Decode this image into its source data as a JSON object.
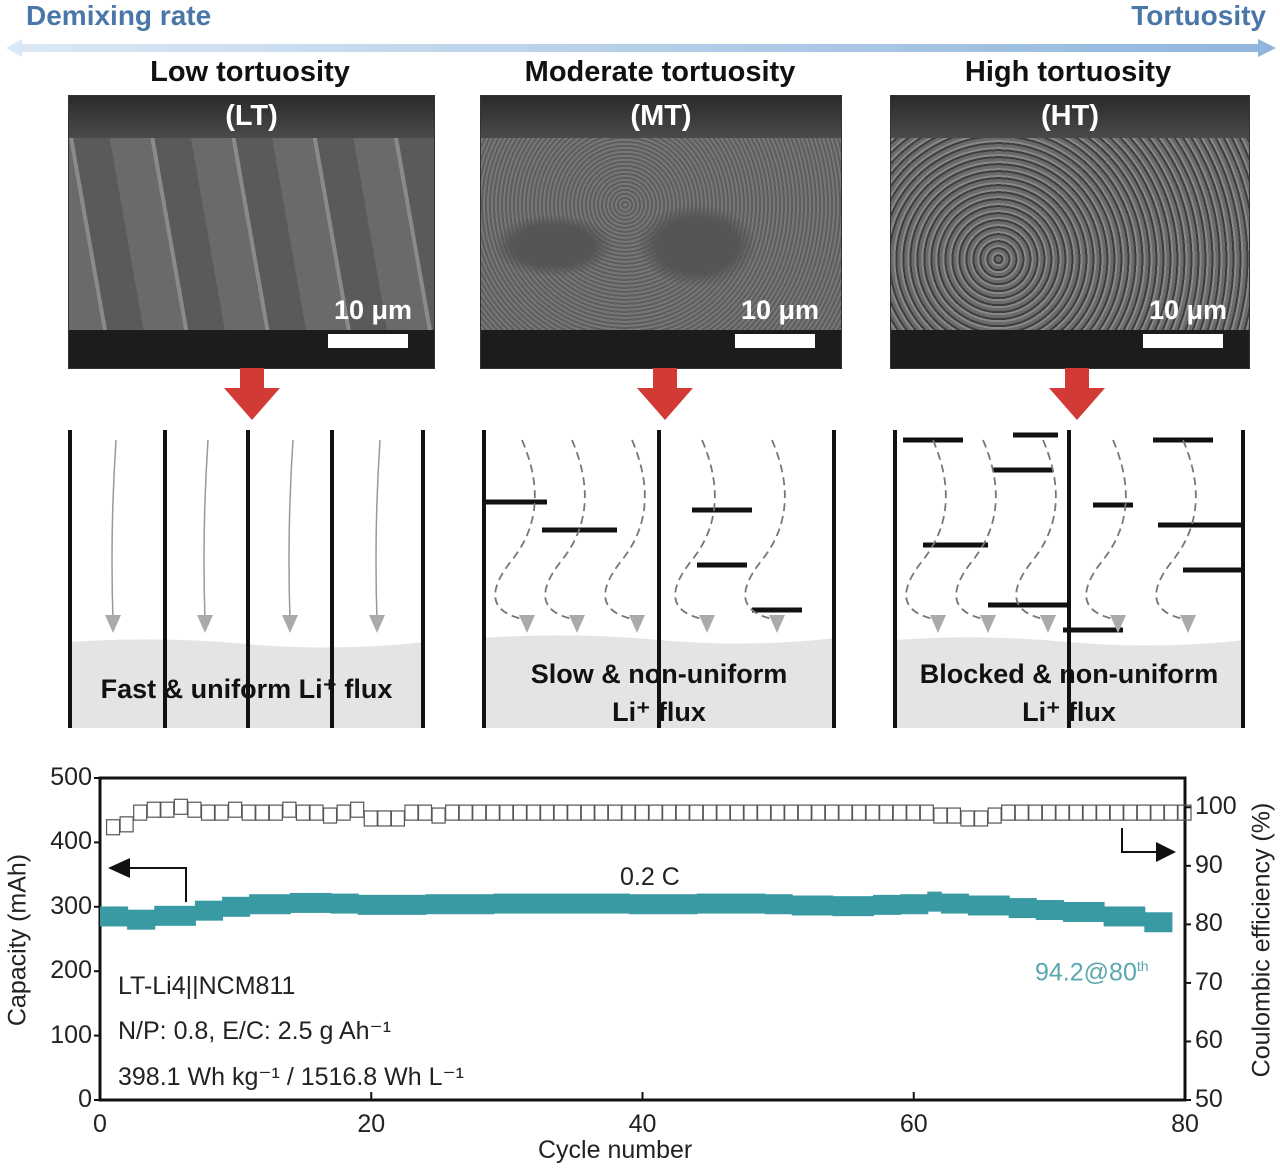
{
  "header": {
    "left_label": "Demixing rate",
    "right_label": "Tortuosity",
    "arrow_color": "#a9c8e8"
  },
  "panels": [
    {
      "title": "Low tortuosity",
      "abbr": "(LT)",
      "scale_bar": "10 μm",
      "flux_text_1": "Fast & uniform Li⁺ flux",
      "flux_text_2": ""
    },
    {
      "title": "Moderate tortuosity",
      "abbr": "(MT)",
      "scale_bar": "10 μm",
      "flux_text_1": "Slow & non-uniform",
      "flux_text_2": "Li⁺ flux"
    },
    {
      "title": "High tortuosity",
      "abbr": "(HT)",
      "scale_bar": "10 μm",
      "flux_text_1": "Blocked & non-uniform",
      "flux_text_2": "Li⁺ flux"
    }
  ],
  "colors": {
    "down_arrow": "#d23a35",
    "capacity": "#3a9aa3",
    "ce_marker": "#555555"
  },
  "chart_data": {
    "type": "scatter",
    "xlabel": "Cycle number",
    "ylabel_left": "Capacity (mAh)",
    "ylabel_right": "Coulombic efficiency (%)",
    "xlim": [
      0,
      80
    ],
    "ylim_left": [
      0,
      500
    ],
    "ylim_right": [
      50,
      105
    ],
    "x_ticks": [
      "0",
      "20",
      "40",
      "60",
      "80"
    ],
    "y_ticks_left": [
      "0",
      "100",
      "200",
      "300",
      "400",
      "500"
    ],
    "y_ticks_right": [
      "50",
      "60",
      "70",
      "80",
      "90",
      "100"
    ],
    "rate_label": "0.2 C",
    "retention_label": "94.2@80",
    "retention_sup": "th",
    "info_lines": [
      "LT-Li4||NCM811",
      "N/P: 0.8, E/C: 2.5 g Ah⁻¹",
      "398.1 Wh kg⁻¹ / 1516.8 Wh L⁻¹"
    ],
    "series": [
      {
        "axis": "left",
        "marker": "band",
        "x": [
          1,
          2,
          3,
          5,
          8,
          10,
          12,
          15,
          18,
          20,
          25,
          30,
          35,
          40,
          45,
          50,
          52,
          55,
          58,
          60,
          62,
          63,
          65,
          68,
          70,
          72,
          75,
          78,
          80
        ],
        "values": [
          285,
          285,
          280,
          286,
          294,
          300,
          304,
          306,
          305,
          303,
          304,
          305,
          305,
          304,
          305,
          304,
          302,
          301,
          303,
          304,
          308,
          305,
          302,
          298,
          295,
          292,
          285,
          276,
          272
        ]
      },
      {
        "axis": "right",
        "marker": "open-square",
        "x": [
          1,
          2,
          3,
          4,
          5,
          6,
          7,
          8,
          9,
          10,
          11,
          12,
          13,
          14,
          15,
          16,
          17,
          18,
          19,
          20,
          21,
          22,
          23,
          24,
          25,
          26,
          27,
          28,
          29,
          30,
          31,
          32,
          33,
          34,
          35,
          36,
          37,
          38,
          39,
          40,
          41,
          42,
          43,
          44,
          45,
          46,
          47,
          48,
          49,
          50,
          51,
          52,
          53,
          54,
          55,
          56,
          57,
          58,
          59,
          60,
          61,
          62,
          63,
          64,
          65,
          66,
          67,
          68,
          69,
          70,
          71,
          72,
          73,
          74,
          75,
          76,
          77,
          78,
          79,
          80
        ],
        "values": [
          96.5,
          97,
          99,
          99.5,
          99.5,
          100,
          99.5,
          99,
          99,
          99.5,
          99,
          99,
          99,
          99.5,
          99,
          99,
          98.5,
          99,
          99.5,
          98,
          98,
          98,
          99,
          99,
          98.5,
          99,
          99,
          99,
          99,
          99,
          99,
          99,
          99,
          99,
          99,
          99,
          99,
          99,
          99,
          99,
          99,
          99,
          99,
          99,
          99,
          99,
          99,
          99,
          99,
          99,
          99,
          99,
          99,
          99,
          99,
          99,
          99,
          99,
          99,
          99,
          99,
          98.5,
          98.5,
          98,
          98,
          98.5,
          99,
          99,
          99,
          99,
          99,
          99,
          99,
          99,
          99,
          99,
          99,
          99,
          99,
          99
        ]
      }
    ]
  }
}
